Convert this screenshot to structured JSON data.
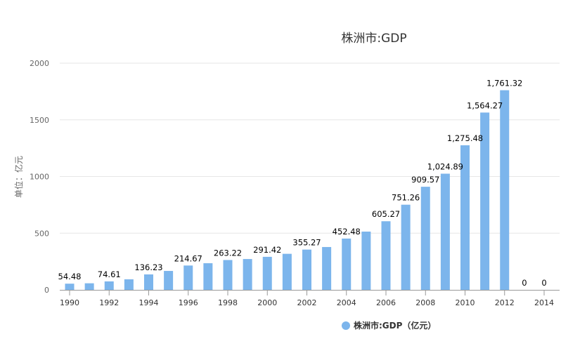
{
  "chart_data": {
    "type": "bar",
    "title": "株洲市:GDP",
    "ylabel": "单位：亿元",
    "xlabel": "",
    "ylim": [
      0,
      2000
    ],
    "yticks": [
      0,
      500,
      1000,
      1500,
      2000
    ],
    "grid": true,
    "legend_position": "bottom",
    "bar_color": "#7cb5ec",
    "categories": [
      "1990",
      "1991",
      "1992",
      "1993",
      "1994",
      "1995",
      "1996",
      "1997",
      "1998",
      "1999",
      "2000",
      "2001",
      "2002",
      "2003",
      "2004",
      "2005",
      "2006",
      "2007",
      "2008",
      "2009",
      "2010",
      "2011",
      "2012",
      "2013",
      "2014"
    ],
    "xtick_labels": [
      "1990",
      "1992",
      "1994",
      "1996",
      "1998",
      "2000",
      "2002",
      "2004",
      "2006",
      "2008",
      "2010",
      "2012",
      "2014"
    ],
    "series": [
      {
        "name": "株洲市:GDP（亿元）",
        "values": [
          54.48,
          58,
          74.61,
          93,
          136.23,
          167,
          214.67,
          235,
          263.22,
          272,
          291.42,
          318,
          355.27,
          378,
          452.48,
          514,
          605.27,
          751.26,
          909.57,
          1024.89,
          1275.48,
          1564.27,
          1761.32,
          0,
          0
        ],
        "data_labels": [
          "54.48",
          "",
          "74.61",
          "",
          "136.23",
          "",
          "214.67",
          "",
          "263.22",
          "",
          "291.42",
          "",
          "355.27",
          "",
          "452.48",
          "",
          "605.27",
          "751.26",
          "909.57",
          "1,024.89",
          "1,275.48",
          "1,564.27",
          "1,761.32",
          "0",
          "0"
        ]
      }
    ]
  }
}
